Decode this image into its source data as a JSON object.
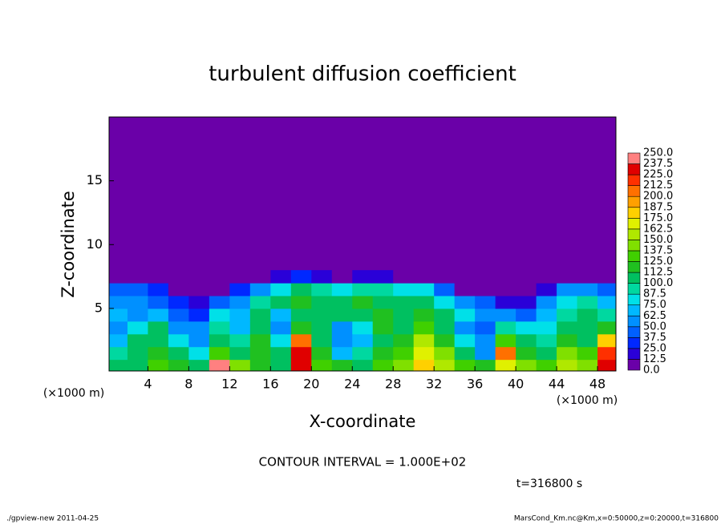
{
  "chart_data": {
    "type": "contour",
    "title": "turbulent diffusion coefficient",
    "xlabel": "X-coordinate",
    "ylabel": "Z-coordinate",
    "x_unit": "(×1000 m)",
    "y_unit": "(×1000 m)",
    "xlim": [
      0.2,
      49.8
    ],
    "ylim": [
      0.1,
      20
    ],
    "xticks": [
      4,
      8,
      12,
      16,
      20,
      24,
      28,
      32,
      36,
      40,
      44,
      48
    ],
    "yticks": [
      5,
      10,
      15
    ],
    "field": {
      "x": [
        1,
        3,
        5,
        7,
        9,
        11,
        13,
        15,
        17,
        19,
        21,
        23,
        25,
        27,
        29,
        31,
        33,
        35,
        37,
        39,
        41,
        43,
        45,
        47,
        49
      ],
      "z": [
        0.5,
        1.5,
        2.5,
        3.5,
        4.5,
        5.5,
        6.5,
        7.5
      ],
      "values": [
        [
          100,
          110,
          130,
          120,
          100,
          240,
          140,
          120,
          110,
          230,
          130,
          115,
          110,
          125,
          140,
          180,
          150,
          130,
          120,
          170,
          140,
          125,
          160,
          140,
          230
        ],
        [
          90,
          110,
          120,
          100,
          80,
          130,
          110,
          120,
          100,
          230,
          120,
          70,
          90,
          120,
          130,
          170,
          140,
          100,
          60,
          200,
          120,
          110,
          140,
          130,
          220
        ],
        [
          70,
          100,
          110,
          80,
          60,
          110,
          90,
          120,
          80,
          200,
          110,
          50,
          70,
          110,
          120,
          150,
          120,
          80,
          50,
          130,
          100,
          90,
          120,
          110,
          180
        ],
        [
          60,
          80,
          100,
          60,
          50,
          90,
          70,
          110,
          60,
          120,
          100,
          60,
          80,
          120,
          110,
          130,
          110,
          60,
          40,
          90,
          80,
          80,
          110,
          100,
          120
        ],
        [
          70,
          60,
          70,
          40,
          30,
          80,
          70,
          100,
          70,
          110,
          110,
          100,
          110,
          120,
          110,
          120,
          100,
          80,
          60,
          50,
          40,
          70,
          90,
          100,
          90
        ],
        [
          60,
          50,
          40,
          30,
          20,
          40,
          60,
          90,
          100,
          120,
          110,
          110,
          120,
          110,
          110,
          110,
          80,
          50,
          40,
          20,
          20,
          50,
          80,
          90,
          70
        ],
        [
          40,
          40,
          30,
          10,
          5,
          10,
          30,
          60,
          80,
          100,
          90,
          80,
          90,
          90,
          80,
          80,
          40,
          10,
          5,
          5,
          5,
          20,
          50,
          60,
          40
        ],
        [
          10,
          5,
          0,
          0,
          0,
          0,
          0,
          10,
          20,
          30,
          20,
          10,
          20,
          20,
          10,
          10,
          0,
          0,
          0,
          0,
          0,
          0,
          5,
          10,
          5
        ]
      ]
    },
    "colorbar": {
      "ticks": [
        {
          "value": 0,
          "label": "0.0"
        },
        {
          "value": 12.5,
          "label": "12.5"
        },
        {
          "value": 25,
          "label": "25.0"
        },
        {
          "value": 37.5,
          "label": "37.5"
        },
        {
          "value": 50,
          "label": "50.0"
        },
        {
          "value": 62.5,
          "label": "62.5"
        },
        {
          "value": 75,
          "label": "75.0"
        },
        {
          "value": 87.5,
          "label": "87.5"
        },
        {
          "value": 100,
          "label": "100.0"
        },
        {
          "value": 112.5,
          "label": "112.5"
        },
        {
          "value": 125,
          "label": "125.0"
        },
        {
          "value": 137.5,
          "label": "137.5"
        },
        {
          "value": 150,
          "label": "150.0"
        },
        {
          "value": 162.5,
          "label": "162.5"
        },
        {
          "value": 175,
          "label": "175.0"
        },
        {
          "value": 187.5,
          "label": "187.5"
        },
        {
          "value": 200,
          "label": "200.0"
        },
        {
          "value": 212.5,
          "label": "212.5"
        },
        {
          "value": 225,
          "label": "225.0"
        },
        {
          "value": 237.5,
          "label": "237.5"
        },
        {
          "value": 250,
          "label": "250.0"
        }
      ],
      "colors": [
        "#6a00a8",
        "#2a00d8",
        "#0028ff",
        "#0060ff",
        "#0090ff",
        "#00b8ff",
        "#00e0e8",
        "#00d8a0",
        "#00c060",
        "#20c020",
        "#40d000",
        "#80e000",
        "#b0e800",
        "#e0f000",
        "#ffd000",
        "#ffa000",
        "#ff7000",
        "#ff3000",
        "#e00000",
        "#ff8080"
      ]
    },
    "contour_interval": "CONTOUR INTERVAL = 1.000E+02",
    "time_label": "t=316800 s",
    "footer_left": "./gpview-new  2011-04-25",
    "footer_right": "MarsCond_Km.nc@Km,x=0:50000,z=0:20000,t=316800"
  }
}
